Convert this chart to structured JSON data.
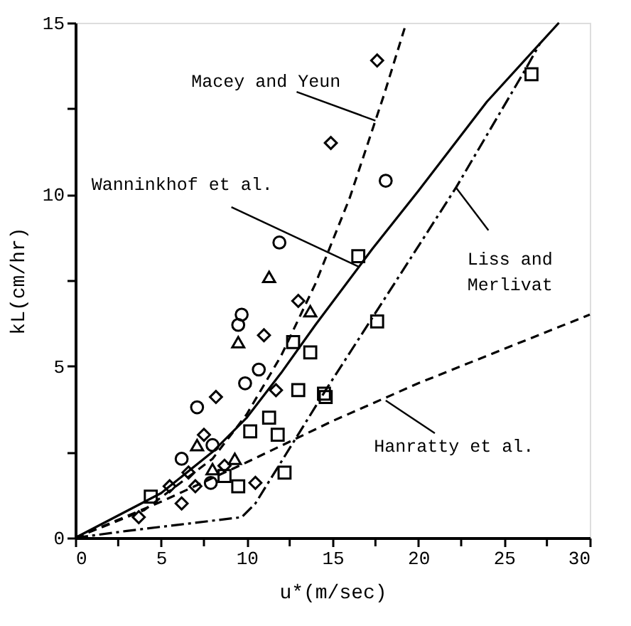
{
  "chart_data": {
    "type": "scatter",
    "xlabel": "u*(m/sec)",
    "ylabel": "kL(cm/hr)",
    "xlim": [
      0,
      30
    ],
    "ylim": [
      0,
      15
    ],
    "xticks": [
      0,
      {
        "value": 2.5,
        "label": null
      },
      5,
      {
        "value": 7.5,
        "label": null
      },
      10,
      {
        "value": 12.5,
        "label": null
      },
      15,
      {
        "value": 17.5,
        "label": null
      },
      20,
      {
        "value": 22.5,
        "label": null
      },
      25,
      {
        "value": 27.5,
        "label": null
      },
      30
    ],
    "yticks": [
      0,
      {
        "value": 2.5,
        "label": null
      },
      5,
      {
        "value": 7.5,
        "label": null
      },
      10,
      {
        "value": 12.5,
        "label": null
      },
      15
    ],
    "grid": false,
    "series": [
      {
        "type": "line",
        "color": "#000000",
        "line_style": "dashed",
        "marker": "none",
        "x": [
          0,
          4,
          8,
          10,
          12,
          14,
          16,
          18,
          19.3
        ],
        "values": [
          0,
          0.8,
          2.3,
          3.6,
          5.3,
          7.4,
          9.9,
          12.9,
          15
        ]
      },
      {
        "type": "line",
        "color": "#000000",
        "line_style": "solid",
        "marker": "none",
        "x": [
          0,
          5,
          8,
          10,
          12,
          14,
          17.3,
          20,
          24,
          28.2
        ],
        "values": [
          0,
          1.3,
          2.5,
          3.5,
          4.8,
          6.2,
          8.4,
          10.1,
          12.7,
          15
        ]
      },
      {
        "type": "line",
        "color": "#000000",
        "line_style": "dashdot",
        "marker": "none",
        "x": [
          0,
          3,
          9.7,
          10.5,
          14.6,
          18.6,
          22.2,
          26.2,
          27.1
        ],
        "values": [
          0,
          0.2,
          0.6,
          1.0,
          4.3,
          7.4,
          10.2,
          13.6,
          14.4
        ]
      },
      {
        "type": "line",
        "color": "#000000",
        "line_style": "dashed",
        "marker": "none",
        "x": [
          0,
          5,
          10,
          15,
          20,
          25,
          30
        ],
        "values": [
          0,
          1.05,
          2.2,
          3.4,
          4.5,
          5.5,
          6.5
        ]
      },
      {
        "type": "scatter",
        "color": "#000000",
        "marker": "square",
        "x": [
          26.6,
          16.5,
          17.6,
          14.6,
          12.7,
          13.7,
          13.0,
          14.5,
          11.3,
          10.2,
          11.8,
          12.2,
          4.4,
          9.5,
          8.7
        ],
        "values": [
          13.5,
          8.2,
          6.3,
          4.1,
          5.7,
          5.4,
          4.3,
          4.2,
          3.5,
          3.1,
          3.0,
          1.9,
          1.2,
          1.5,
          1.8
        ]
      },
      {
        "type": "scatter",
        "color": "#000000",
        "marker": "diamond",
        "x": [
          17.6,
          14.9,
          13.0,
          11.0,
          8.2,
          11.7,
          7.5,
          5.5,
          3.7,
          6.2,
          6.6,
          7.0,
          8.7,
          10.5
        ],
        "values": [
          13.9,
          11.5,
          6.9,
          5.9,
          4.1,
          4.3,
          3.0,
          1.5,
          0.6,
          1.0,
          1.9,
          1.5,
          2.1,
          1.6
        ]
      },
      {
        "type": "scatter",
        "color": "#000000",
        "marker": "circle",
        "x": [
          18.1,
          10.7,
          9.9,
          8.0,
          7.9
        ],
        "values": [
          10.4,
          4.9,
          4.5,
          2.7,
          1.6
        ]
      },
      {
        "type": "scatter",
        "color": "#000000",
        "marker": "triangle",
        "x": [
          9.5,
          13.7,
          7.1,
          9.3,
          8.0,
          11.3
        ],
        "values": [
          5.7,
          6.6,
          2.7,
          2.3,
          2.0,
          7.6
        ]
      },
      {
        "type": "scatter",
        "color": "#000000",
        "marker": "circle",
        "x": [
          9.7,
          9.5,
          7.1,
          6.2,
          11.9
        ],
        "values": [
          6.5,
          6.2,
          3.8,
          2.3,
          8.6
        ]
      }
    ],
    "annotations": [
      {
        "text": "Macey and Yeun",
        "x": 17.5,
        "y": 12.15
      },
      {
        "text": "Wanninkhof et al.",
        "x": 16.5,
        "y": 7.9
      },
      {
        "text": "Liss and Merlivat",
        "x": 22.2,
        "y": 10.2
      },
      {
        "text": "Hanratty et al.",
        "x": 18.1,
        "y": 4.0
      }
    ]
  }
}
